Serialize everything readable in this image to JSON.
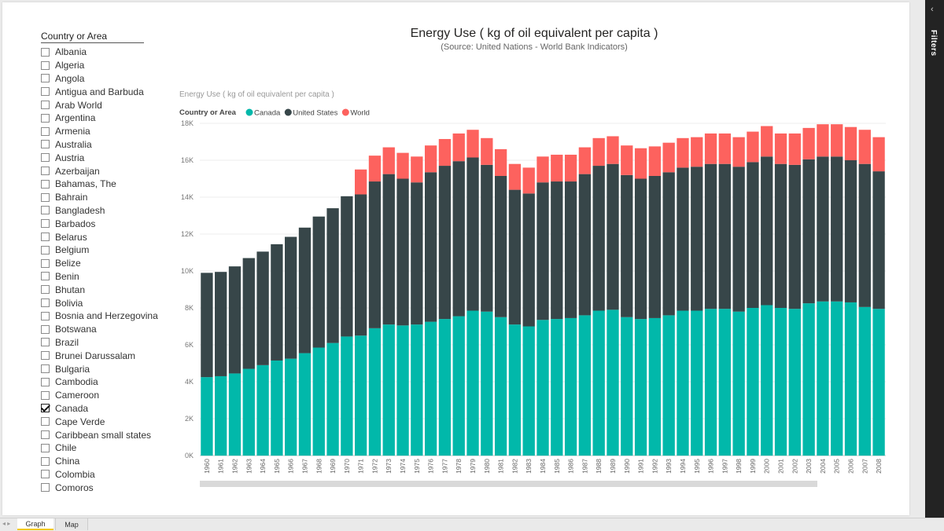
{
  "report": {
    "title": "Energy Use ( kg of oil equivalent per capita )",
    "subtitle": "(Source: United Nations - World Bank Indicators)"
  },
  "slicer": {
    "title": "Country or Area",
    "items": [
      {
        "label": "Albania",
        "checked": false
      },
      {
        "label": "Algeria",
        "checked": false
      },
      {
        "label": "Angola",
        "checked": false
      },
      {
        "label": "Antigua and Barbuda",
        "checked": false
      },
      {
        "label": "Arab World",
        "checked": false
      },
      {
        "label": "Argentina",
        "checked": false
      },
      {
        "label": "Armenia",
        "checked": false
      },
      {
        "label": "Australia",
        "checked": false
      },
      {
        "label": "Austria",
        "checked": false
      },
      {
        "label": "Azerbaijan",
        "checked": false
      },
      {
        "label": "Bahamas, The",
        "checked": false
      },
      {
        "label": "Bahrain",
        "checked": false
      },
      {
        "label": "Bangladesh",
        "checked": false
      },
      {
        "label": "Barbados",
        "checked": false
      },
      {
        "label": "Belarus",
        "checked": false
      },
      {
        "label": "Belgium",
        "checked": false
      },
      {
        "label": "Belize",
        "checked": false
      },
      {
        "label": "Benin",
        "checked": false
      },
      {
        "label": "Bhutan",
        "checked": false
      },
      {
        "label": "Bolivia",
        "checked": false
      },
      {
        "label": "Bosnia and Herzegovina",
        "checked": false
      },
      {
        "label": "Botswana",
        "checked": false
      },
      {
        "label": "Brazil",
        "checked": false
      },
      {
        "label": "Brunei Darussalam",
        "checked": false
      },
      {
        "label": "Bulgaria",
        "checked": false
      },
      {
        "label": "Cambodia",
        "checked": false
      },
      {
        "label": "Cameroon",
        "checked": false
      },
      {
        "label": "Canada",
        "checked": true
      },
      {
        "label": "Cape Verde",
        "checked": false
      },
      {
        "label": "Caribbean small states",
        "checked": false
      },
      {
        "label": "Chile",
        "checked": false
      },
      {
        "label": "China",
        "checked": false
      },
      {
        "label": "Colombia",
        "checked": false
      },
      {
        "label": "Comoros",
        "checked": false
      }
    ]
  },
  "chart_data": {
    "type": "bar",
    "stacked": true,
    "title": "Energy Use ( kg of oil equivalent per capita )",
    "legend_title": "Country or Area",
    "legend_position": "top-left",
    "grid": true,
    "ylim": [
      0,
      18000
    ],
    "yticks": [
      0,
      2000,
      4000,
      6000,
      8000,
      10000,
      12000,
      14000,
      16000,
      18000
    ],
    "ytick_labels": [
      "0K",
      "2K",
      "4K",
      "6K",
      "8K",
      "10K",
      "12K",
      "14K",
      "16K",
      "18K"
    ],
    "categories": [
      "1960",
      "1961",
      "1962",
      "1963",
      "1964",
      "1965",
      "1966",
      "1967",
      "1968",
      "1969",
      "1970",
      "1971",
      "1972",
      "1973",
      "1974",
      "1975",
      "1976",
      "1977",
      "1978",
      "1979",
      "1980",
      "1981",
      "1982",
      "1983",
      "1984",
      "1985",
      "1986",
      "1987",
      "1988",
      "1989",
      "1990",
      "1991",
      "1992",
      "1993",
      "1994",
      "1995",
      "1996",
      "1997",
      "1998",
      "1999",
      "2000",
      "2001",
      "2002",
      "2003",
      "2004",
      "2005",
      "2006",
      "2007",
      "2008"
    ],
    "series": [
      {
        "name": "Canada",
        "color": "#01b8aa",
        "values": [
          4250,
          4300,
          4450,
          4700,
          4900,
          5150,
          5250,
          5550,
          5850,
          6100,
          6450,
          6500,
          6900,
          7100,
          7050,
          7100,
          7250,
          7400,
          7550,
          7850,
          7800,
          7500,
          7100,
          7000,
          7350,
          7400,
          7450,
          7600,
          7850,
          7900,
          7500,
          7400,
          7450,
          7600,
          7850,
          7850,
          7950,
          7950,
          7800,
          8000,
          8150,
          8000,
          7950,
          8250,
          8350,
          8350,
          8300,
          8050,
          7950
        ]
      },
      {
        "name": "United States",
        "color": "#374649",
        "values": [
          5650,
          5650,
          5800,
          6000,
          6150,
          6300,
          6600,
          6800,
          7100,
          7300,
          7600,
          7650,
          7950,
          8150,
          7950,
          7700,
          8100,
          8300,
          8400,
          8300,
          7950,
          7650,
          7300,
          7200,
          7450,
          7450,
          7400,
          7650,
          7850,
          7900,
          7700,
          7600,
          7700,
          7750,
          7750,
          7800,
          7850,
          7850,
          7850,
          7900,
          8050,
          7800,
          7800,
          7800,
          7850,
          7850,
          7700,
          7750,
          7450
        ]
      },
      {
        "name": "World",
        "color": "#fd625e",
        "values": [
          0,
          0,
          0,
          0,
          0,
          0,
          0,
          0,
          0,
          0,
          0,
          1350,
          1400,
          1450,
          1400,
          1400,
          1450,
          1450,
          1500,
          1500,
          1450,
          1450,
          1400,
          1400,
          1400,
          1450,
          1450,
          1450,
          1500,
          1500,
          1600,
          1650,
          1600,
          1600,
          1600,
          1600,
          1650,
          1650,
          1600,
          1650,
          1650,
          1650,
          1700,
          1700,
          1750,
          1750,
          1800,
          1850,
          1850
        ]
      }
    ]
  },
  "filters_pane": {
    "label": "Filters",
    "collapse_icon": "chevron-left-icon"
  },
  "tabs": {
    "nav": "◂ ▸",
    "items": [
      "Graph",
      "Map"
    ],
    "active": "Graph"
  }
}
